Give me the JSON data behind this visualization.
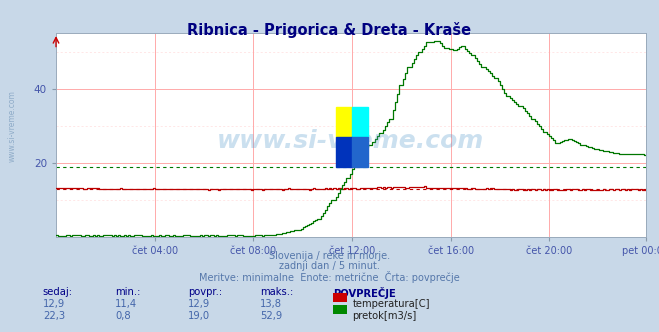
{
  "title": "Ribnica - Prigorica & Dreta - Kraše",
  "title_color": "#000080",
  "bg_color": "#c8d8e8",
  "plot_bg_color": "#ffffff",
  "grid_color": "#ffaaaa",
  "grid_minor_color": "#ffdddd",
  "tick_color": "#4455aa",
  "watermark": "www.si-vreme.com",
  "watermark_color": "#5599cc",
  "watermark_alpha": 0.3,
  "subtitle1": "Slovenija / reke in morje.",
  "subtitle2": "zadnji dan / 5 minut.",
  "subtitle3": "Meritve: minimalne  Enote: metrične  Črta: povprečje",
  "subtitle_color": "#5577aa",
  "x_tick_labels": [
    "čet 04:00",
    "čet 08:00",
    "čet 12:00",
    "čet 16:00",
    "čet 20:00",
    "pet 00:00"
  ],
  "x_tick_positions": [
    48,
    96,
    144,
    192,
    240,
    287
  ],
  "ylim_min": 0,
  "ylim_max": 55,
  "yticks": [
    20,
    40
  ],
  "ytick_labels": [
    "20",
    "40"
  ],
  "n_points": 288,
  "temp_color": "#bb0000",
  "flow_color": "#007700",
  "temp_avg": 12.9,
  "flow_avg": 19.0,
  "table_headers": [
    "sedaj:",
    "min.:",
    "povpr.:",
    "maks.:",
    "POVPREČJE"
  ],
  "table_row1": [
    "12,9",
    "11,4",
    "12,9",
    "13,8"
  ],
  "table_row2": [
    "22,3",
    "0,8",
    "19,0",
    "52,9"
  ],
  "legend_temp": "temperatura[C]",
  "legend_flow": "pretok[m3/s]",
  "legend_color_temp": "#cc0000",
  "legend_color_flow": "#008800",
  "left_watermark": "www.si-vreme.com",
  "left_wm_color": "#7799bb",
  "arrow_color": "#cc0000"
}
